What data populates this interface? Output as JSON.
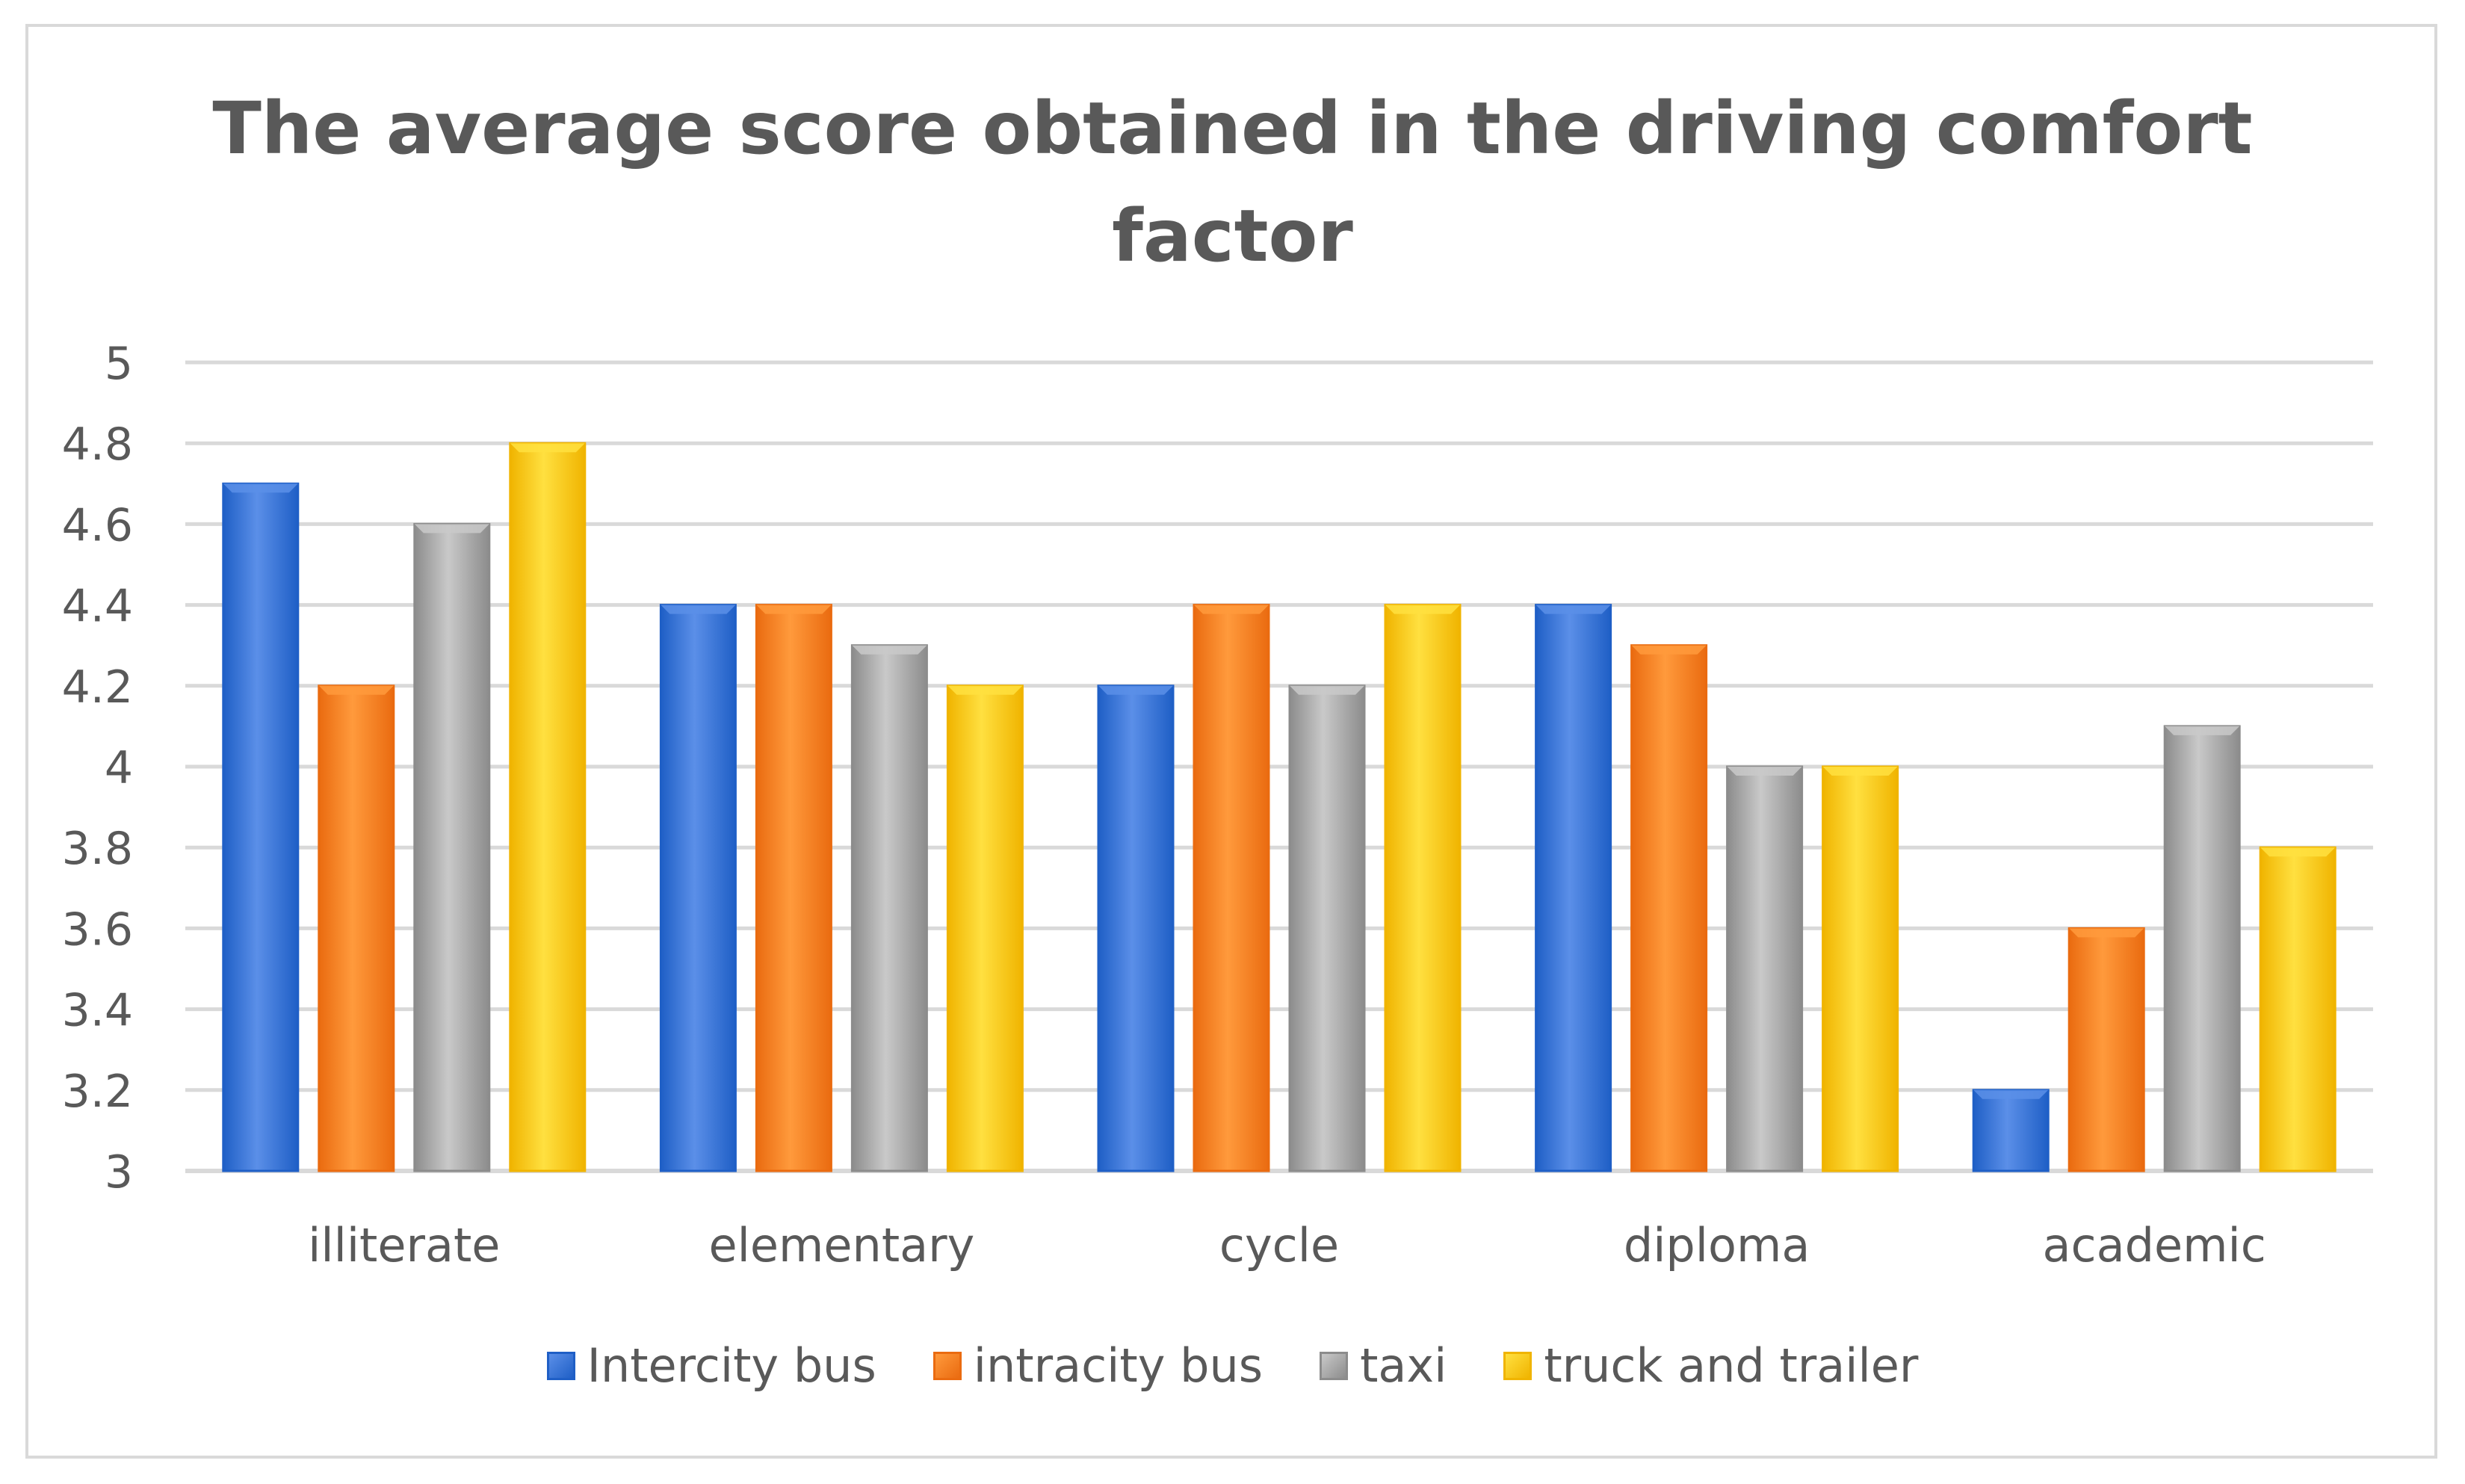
{
  "chart_data": {
    "type": "bar",
    "title_lines": [
      "The average score obtained in the driving comfort",
      "factor"
    ],
    "xlabel": "",
    "ylabel": "",
    "categories": [
      "illiterate",
      "elementary",
      "cycle",
      "diploma",
      "academic"
    ],
    "series": [
      {
        "name": "Intercity bus",
        "color": "#1f5fc6",
        "color_light": "#5b8fe8",
        "values": [
          4.7,
          4.4,
          4.2,
          4.4,
          3.2
        ]
      },
      {
        "name": "intracity bus",
        "color": "#ea6b10",
        "color_light": "#ff9a3c",
        "values": [
          4.2,
          4.4,
          4.4,
          4.3,
          3.6
        ]
      },
      {
        "name": "taxi",
        "color": "#8c8c8c",
        "color_light": "#c9c9c9",
        "values": [
          4.6,
          4.3,
          4.2,
          4.0,
          4.1
        ]
      },
      {
        "name": "truck and trailer",
        "color": "#f0b400",
        "color_light": "#ffe040",
        "values": [
          4.8,
          4.2,
          4.4,
          4.0,
          3.8
        ]
      }
    ],
    "ylim": [
      3,
      5
    ],
    "yticks": [
      "3",
      "3.2",
      "3.4",
      "3.6",
      "3.8",
      "4",
      "4.2",
      "4.4",
      "4.6",
      "4.8",
      "5"
    ],
    "grid": true,
    "legend_position": "bottom"
  }
}
